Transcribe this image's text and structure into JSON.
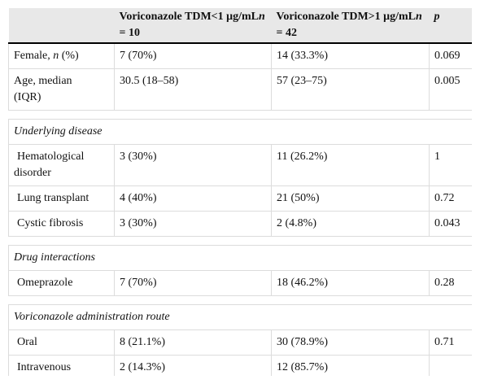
{
  "header": {
    "columns": [
      [
        "Voriconazole TDM<1 μg/mL",
        "n",
        " = 10"
      ],
      [
        "Voriconazole TDM>1 μg/mL",
        "n",
        " = 42"
      ],
      [
        "",
        "p"
      ]
    ]
  },
  "rows": [
    {
      "cells": [
        [
          "Female, ",
          "n",
          " (%)"
        ],
        "7 (70%)",
        "14 (33.3%)",
        "0.069"
      ]
    },
    {
      "cells": [
        [
          "Age, median (IQR)"
        ],
        "30.5 (18–58)",
        "57 (23–75)",
        "0.005"
      ]
    },
    {
      "section": "Underlying disease"
    },
    {
      "cells": [
        [
          "Hematological disorder"
        ],
        "3 (30%)",
        "11 (26.2%)",
        "1"
      ]
    },
    {
      "cells": [
        [
          "Lung transplant"
        ],
        "4 (40%)",
        "21 (50%)",
        "0.72"
      ]
    },
    {
      "cells": [
        [
          "Cystic fibrosis"
        ],
        "3 (30%)",
        "2 (4.8%)",
        "0.043"
      ]
    },
    {
      "section": "Drug interactions"
    },
    {
      "cells": [
        [
          "Omeprazole"
        ],
        "7 (70%)",
        "18 (46.2%)",
        "0.28"
      ]
    },
    {
      "section": "Voriconazole administration route"
    },
    {
      "cells": [
        [
          "Oral"
        ],
        "8 (21.1%)",
        "30 (78.9%)",
        "0.71"
      ]
    },
    {
      "cells": [
        [
          "Intravenous"
        ],
        "2 (14.3%)",
        "12 (85.7%)",
        ""
      ]
    }
  ]
}
